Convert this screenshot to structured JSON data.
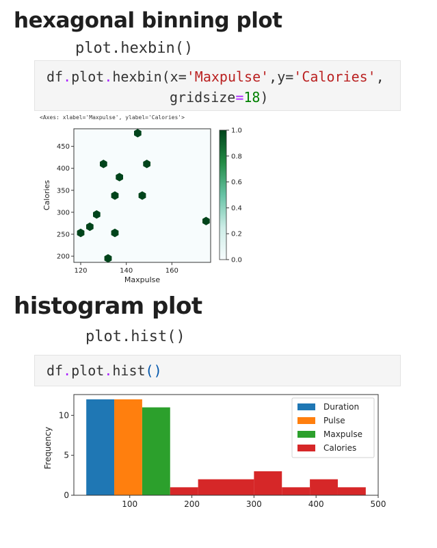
{
  "headings": {
    "hexbin_title": "hexagonal binning plot",
    "hexbin_method": "plot.hexbin()",
    "hist_title": "histogram plot",
    "hist_method": "plot.hist()"
  },
  "code": {
    "hexbin_line1": {
      "obj": "df",
      "dot1": ".",
      "plot": "plot",
      "dot2": ".",
      "fn": "hexbin(x=",
      "s1": "'Maxpulse'",
      "mid": ",y=",
      "s2": "'Calories'",
      "end": ","
    },
    "hexbin_line2": {
      "kw": "gridsize",
      "eq": "=",
      "num": "18",
      "close": ")"
    },
    "hist_line": {
      "obj": "df",
      "dot1": ".",
      "plot": "plot",
      "dot2": ".",
      "fn": "hist",
      "parens": "()"
    }
  },
  "output_text": "<Axes: xlabel='Maxpulse', ylabel='Calories'>",
  "chart_data": [
    {
      "type": "hexbin",
      "xlabel": "Maxpulse",
      "ylabel": "Calories",
      "xlim": [
        117,
        177
      ],
      "ylim": [
        186,
        490
      ],
      "xticks": [
        120,
        140,
        160
      ],
      "yticks": [
        200,
        250,
        300,
        350,
        400,
        450
      ],
      "gridsize": 18,
      "colormap": "BuGn",
      "hex_color": "#00441b",
      "points": [
        {
          "x": 145,
          "y": 480
        },
        {
          "x": 130,
          "y": 410
        },
        {
          "x": 149,
          "y": 410
        },
        {
          "x": 137,
          "y": 380
        },
        {
          "x": 135,
          "y": 338
        },
        {
          "x": 147,
          "y": 338
        },
        {
          "x": 127,
          "y": 295
        },
        {
          "x": 175,
          "y": 280
        },
        {
          "x": 124,
          "y": 267
        },
        {
          "x": 120,
          "y": 253
        },
        {
          "x": 135,
          "y": 253
        },
        {
          "x": 132,
          "y": 195
        }
      ],
      "colorbar": {
        "min": 0.0,
        "max": 1.0,
        "ticks": [
          "0.0",
          "0.2",
          "0.4",
          "0.6",
          "0.8",
          "1.0"
        ]
      }
    },
    {
      "type": "histogram",
      "xlabel": "",
      "ylabel": "Frequency",
      "xlim": [
        10,
        500
      ],
      "ylim": [
        0,
        12.6
      ],
      "xticks": [
        100,
        200,
        300,
        400,
        500
      ],
      "yticks": [
        0,
        5,
        10
      ],
      "legend_position": "top-right",
      "series": [
        {
          "name": "Duration",
          "color": "#1f77b4"
        },
        {
          "name": "Pulse",
          "color": "#ff7f0e"
        },
        {
          "name": "Maxpulse",
          "color": "#2ca02c"
        },
        {
          "name": "Calories",
          "color": "#d62728"
        }
      ],
      "bars": [
        {
          "series": "Duration",
          "x0": 30,
          "x1": 75,
          "count": 12
        },
        {
          "series": "Pulse",
          "x0": 75,
          "x1": 120,
          "count": 12
        },
        {
          "series": "Maxpulse",
          "x0": 120,
          "x1": 165,
          "count": 11
        },
        {
          "series": "Calories",
          "x0": 165,
          "x1": 210,
          "count": 1
        },
        {
          "series": "Calories",
          "x0": 210,
          "x1": 255,
          "count": 2
        },
        {
          "series": "Calories",
          "x0": 255,
          "x1": 300,
          "count": 2
        },
        {
          "series": "Calories",
          "x0": 300,
          "x1": 345,
          "count": 3
        },
        {
          "series": "Calories",
          "x0": 345,
          "x1": 390,
          "count": 1
        },
        {
          "series": "Calories",
          "x0": 390,
          "x1": 435,
          "count": 2
        },
        {
          "series": "Calories",
          "x0": 435,
          "x1": 480,
          "count": 1
        }
      ]
    }
  ]
}
